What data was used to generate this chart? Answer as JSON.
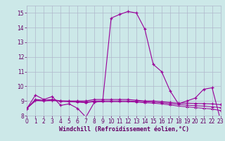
{
  "xlabel": "Windchill (Refroidissement éolien,°C)",
  "background_color": "#cce8e8",
  "grid_color": "#b0b8cc",
  "line_color": "#990099",
  "xlim": [
    0,
    23
  ],
  "ylim": [
    8,
    15.5
  ],
  "yticks": [
    8,
    9,
    10,
    11,
    12,
    13,
    14,
    15
  ],
  "xticks": [
    0,
    1,
    2,
    3,
    4,
    5,
    6,
    7,
    8,
    9,
    10,
    11,
    12,
    13,
    14,
    15,
    16,
    17,
    18,
    19,
    20,
    21,
    22,
    23
  ],
  "series1_x": [
    0,
    1,
    2,
    3,
    4,
    5,
    6,
    7,
    8,
    9,
    10,
    11,
    12,
    13,
    14,
    15,
    16,
    17,
    18,
    19,
    20,
    21,
    22,
    23
  ],
  "series1_y": [
    8.5,
    9.4,
    9.1,
    9.3,
    8.7,
    8.8,
    8.5,
    7.9,
    8.9,
    9.0,
    14.65,
    14.9,
    15.1,
    15.0,
    13.9,
    11.5,
    11.0,
    9.7,
    8.8,
    9.0,
    9.2,
    9.8,
    9.9,
    7.7
  ],
  "series2_x": [
    0,
    1,
    2,
    3,
    4,
    5,
    6,
    7,
    8,
    9,
    10,
    11,
    12,
    13,
    14,
    15,
    16,
    17,
    18,
    19,
    20,
    21,
    22,
    23
  ],
  "series2_y": [
    8.5,
    9.1,
    9.05,
    9.1,
    9.0,
    9.0,
    9.0,
    9.0,
    9.1,
    9.1,
    9.1,
    9.1,
    9.1,
    9.05,
    9.0,
    9.0,
    8.95,
    8.9,
    8.85,
    8.85,
    8.83,
    8.82,
    8.8,
    8.75
  ],
  "series3_x": [
    0,
    1,
    2,
    3,
    4,
    5,
    6,
    7,
    8,
    9,
    10,
    11,
    12,
    13,
    14,
    15,
    16,
    17,
    18,
    19,
    20,
    21,
    22,
    23
  ],
  "series3_y": [
    8.5,
    9.05,
    9.0,
    9.05,
    9.0,
    8.98,
    8.95,
    8.92,
    9.0,
    9.0,
    9.0,
    9.0,
    9.0,
    8.98,
    8.95,
    8.92,
    8.88,
    8.82,
    8.76,
    8.72,
    8.68,
    8.65,
    8.6,
    8.55
  ],
  "series4_x": [
    0,
    1,
    2,
    3,
    4,
    5,
    6,
    7,
    8,
    9,
    10,
    11,
    12,
    13,
    14,
    15,
    16,
    17,
    18,
    19,
    20,
    21,
    22,
    23
  ],
  "series4_y": [
    8.5,
    9.0,
    9.0,
    9.0,
    8.97,
    8.95,
    8.92,
    8.88,
    8.95,
    8.95,
    8.95,
    8.95,
    8.95,
    8.92,
    8.88,
    8.85,
    8.8,
    8.73,
    8.65,
    8.6,
    8.55,
    8.5,
    8.45,
    8.35
  ]
}
